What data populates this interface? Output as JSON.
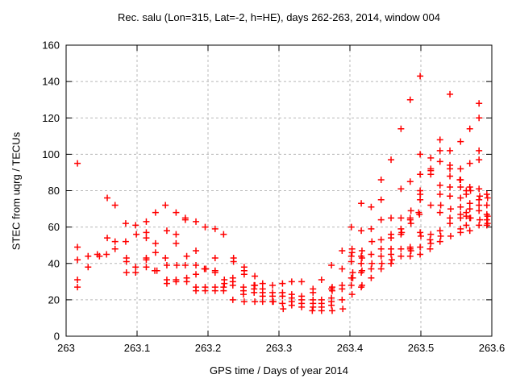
{
  "chart_data": {
    "type": "scatter",
    "title": "Rec. salu (Lon=315, Lat=-2, h=HE), days 262-263, 2014, window 004",
    "xlabel": "GPS time / Days of year 2014",
    "ylabel": "STEC from uqrg / TECUs",
    "xlim": [
      263,
      263.6
    ],
    "ylim": [
      0,
      160
    ],
    "xticks": [
      263,
      263.1,
      263.2,
      263.3,
      263.4,
      263.5,
      263.6
    ],
    "xtick_labels": [
      "263",
      "263.1",
      "263.2",
      "263.3",
      "263.4",
      "263.5",
      "263.6"
    ],
    "yticks": [
      0,
      20,
      40,
      60,
      80,
      100,
      120,
      140,
      160
    ],
    "ytick_labels": [
      "0",
      "20",
      "40",
      "60",
      "80",
      "100",
      "120",
      "140",
      "160"
    ],
    "grid": true,
    "grid_style": "dashed",
    "grid_color": "#b8b8b8",
    "axis_color": "#000000",
    "legend": "none",
    "marker": {
      "shape": "plus",
      "color": "#ff0000",
      "size": 8,
      "stroke_width": 1.5
    },
    "series": [
      {
        "name": "STEC",
        "points": [
          [
            263.016,
            95
          ],
          [
            263.016,
            49
          ],
          [
            263.016,
            42
          ],
          [
            263.016,
            31
          ],
          [
            263.016,
            27
          ],
          [
            263.031,
            44
          ],
          [
            263.031,
            38
          ],
          [
            263.044,
            45
          ],
          [
            263.047,
            44
          ],
          [
            263.058,
            76
          ],
          [
            263.058,
            54
          ],
          [
            263.057,
            45
          ],
          [
            263.069,
            72
          ],
          [
            263.069,
            52
          ],
          [
            263.069,
            48
          ],
          [
            263.084,
            62
          ],
          [
            263.084,
            52
          ],
          [
            263.085,
            43
          ],
          [
            263.085,
            41
          ],
          [
            263.085,
            35
          ],
          [
            263.098,
            61
          ],
          [
            263.099,
            56
          ],
          [
            263.098,
            38
          ],
          [
            263.098,
            35
          ],
          [
            263.113,
            63
          ],
          [
            263.113,
            57
          ],
          [
            263.113,
            54
          ],
          [
            263.113,
            43
          ],
          [
            263.113,
            42
          ],
          [
            263.113,
            38
          ],
          [
            263.126,
            68
          ],
          [
            263.126,
            51
          ],
          [
            263.126,
            46
          ],
          [
            263.125,
            36
          ],
          [
            263.128,
            36
          ],
          [
            263.14,
            72
          ],
          [
            263.142,
            58
          ],
          [
            263.14,
            43
          ],
          [
            263.142,
            39
          ],
          [
            263.142,
            31
          ],
          [
            263.142,
            29
          ],
          [
            263.155,
            68
          ],
          [
            263.155,
            56
          ],
          [
            263.155,
            51
          ],
          [
            263.156,
            39
          ],
          [
            263.155,
            31
          ],
          [
            263.155,
            30
          ],
          [
            263.168,
            65
          ],
          [
            263.168,
            64
          ],
          [
            263.17,
            44
          ],
          [
            263.168,
            39
          ],
          [
            263.17,
            32
          ],
          [
            263.17,
            30
          ],
          [
            263.183,
            63
          ],
          [
            263.183,
            47
          ],
          [
            263.183,
            39
          ],
          [
            263.183,
            34
          ],
          [
            263.183,
            27
          ],
          [
            263.183,
            25
          ],
          [
            263.196,
            60
          ],
          [
            263.197,
            37
          ],
          [
            263.195,
            37
          ],
          [
            263.196,
            27
          ],
          [
            263.196,
            25
          ],
          [
            263.21,
            59
          ],
          [
            263.21,
            43
          ],
          [
            263.21,
            36
          ],
          [
            263.21,
            35
          ],
          [
            263.21,
            27
          ],
          [
            263.21,
            25
          ],
          [
            263.222,
            56
          ],
          [
            263.223,
            31
          ],
          [
            263.223,
            29
          ],
          [
            263.222,
            27
          ],
          [
            263.222,
            25
          ],
          [
            263.236,
            43
          ],
          [
            263.236,
            41
          ],
          [
            263.235,
            32
          ],
          [
            263.235,
            30
          ],
          [
            263.235,
            28
          ],
          [
            263.235,
            20
          ],
          [
            263.251,
            38
          ],
          [
            263.251,
            36
          ],
          [
            263.251,
            34
          ],
          [
            263.25,
            27
          ],
          [
            263.25,
            25
          ],
          [
            263.25,
            23
          ],
          [
            263.251,
            19
          ],
          [
            263.266,
            33
          ],
          [
            263.265,
            28
          ],
          [
            263.266,
            28
          ],
          [
            263.265,
            26
          ],
          [
            263.265,
            24
          ],
          [
            263.266,
            19
          ],
          [
            263.277,
            29
          ],
          [
            263.277,
            26
          ],
          [
            263.277,
            24
          ],
          [
            263.277,
            22
          ],
          [
            263.277,
            19
          ],
          [
            263.291,
            28
          ],
          [
            263.291,
            24
          ],
          [
            263.291,
            22
          ],
          [
            263.291,
            19
          ],
          [
            263.292,
            19
          ],
          [
            263.305,
            29
          ],
          [
            263.305,
            24
          ],
          [
            263.305,
            22
          ],
          [
            263.305,
            18
          ],
          [
            263.306,
            15
          ],
          [
            263.318,
            30
          ],
          [
            263.318,
            23
          ],
          [
            263.318,
            21
          ],
          [
            263.318,
            19
          ],
          [
            263.318,
            17
          ],
          [
            263.332,
            30
          ],
          [
            263.332,
            22
          ],
          [
            263.332,
            20
          ],
          [
            263.332,
            18
          ],
          [
            263.332,
            16
          ],
          [
            263.348,
            26
          ],
          [
            263.348,
            24
          ],
          [
            263.348,
            20
          ],
          [
            263.348,
            18
          ],
          [
            263.348,
            16
          ],
          [
            263.347,
            14
          ],
          [
            263.36,
            31
          ],
          [
            263.36,
            20
          ],
          [
            263.36,
            18
          ],
          [
            263.36,
            16
          ],
          [
            263.36,
            14
          ],
          [
            263.374,
            39
          ],
          [
            263.375,
            27
          ],
          [
            263.374,
            26
          ],
          [
            263.375,
            25
          ],
          [
            263.374,
            21
          ],
          [
            263.374,
            19
          ],
          [
            263.374,
            17
          ],
          [
            263.375,
            14
          ],
          [
            263.389,
            47
          ],
          [
            263.389,
            37
          ],
          [
            263.389,
            28
          ],
          [
            263.389,
            26
          ],
          [
            263.389,
            20
          ],
          [
            263.39,
            15
          ],
          [
            263.402,
            60
          ],
          [
            263.403,
            48
          ],
          [
            263.403,
            46
          ],
          [
            263.402,
            44
          ],
          [
            263.402,
            41
          ],
          [
            263.404,
            35
          ],
          [
            263.402,
            32
          ],
          [
            263.404,
            32
          ],
          [
            263.402,
            28
          ],
          [
            263.403,
            23
          ],
          [
            263.416,
            73
          ],
          [
            263.416,
            58
          ],
          [
            263.417,
            47
          ],
          [
            263.416,
            44
          ],
          [
            263.417,
            43
          ],
          [
            263.416,
            40
          ],
          [
            263.417,
            36
          ],
          [
            263.416,
            35
          ],
          [
            263.417,
            28
          ],
          [
            263.416,
            27
          ],
          [
            263.43,
            71
          ],
          [
            263.43,
            59
          ],
          [
            263.431,
            52
          ],
          [
            263.43,
            45
          ],
          [
            263.431,
            40
          ],
          [
            263.43,
            37
          ],
          [
            263.43,
            32
          ],
          [
            263.444,
            86
          ],
          [
            263.444,
            75
          ],
          [
            263.444,
            64
          ],
          [
            263.444,
            53
          ],
          [
            263.444,
            48
          ],
          [
            263.444,
            44
          ],
          [
            263.445,
            40
          ],
          [
            263.444,
            37
          ],
          [
            263.458,
            97
          ],
          [
            263.458,
            65
          ],
          [
            263.458,
            56
          ],
          [
            263.458,
            54
          ],
          [
            263.458,
            48
          ],
          [
            263.458,
            45
          ],
          [
            263.459,
            42
          ],
          [
            263.458,
            40
          ],
          [
            263.472,
            114
          ],
          [
            263.472,
            81
          ],
          [
            263.472,
            65
          ],
          [
            263.472,
            59
          ],
          [
            263.473,
            57
          ],
          [
            263.472,
            56
          ],
          [
            263.472,
            48
          ],
          [
            263.472,
            44
          ],
          [
            263.485,
            130
          ],
          [
            263.485,
            85
          ],
          [
            263.486,
            69
          ],
          [
            263.485,
            65
          ],
          [
            263.485,
            64
          ],
          [
            263.486,
            62
          ],
          [
            263.485,
            49
          ],
          [
            263.485,
            48
          ],
          [
            263.486,
            47
          ],
          [
            263.485,
            44
          ],
          [
            263.499,
            143
          ],
          [
            263.499,
            100
          ],
          [
            263.499,
            89
          ],
          [
            263.499,
            80
          ],
          [
            263.499,
            78
          ],
          [
            263.499,
            75
          ],
          [
            263.497,
            68
          ],
          [
            263.498,
            67
          ],
          [
            263.499,
            57
          ],
          [
            263.5,
            55
          ],
          [
            263.499,
            49
          ],
          [
            263.499,
            45
          ],
          [
            263.514,
            98
          ],
          [
            263.514,
            92
          ],
          [
            263.514,
            91
          ],
          [
            263.514,
            89
          ],
          [
            263.514,
            72
          ],
          [
            263.514,
            56
          ],
          [
            263.513,
            53
          ],
          [
            263.514,
            51
          ],
          [
            263.513,
            48
          ],
          [
            263.527,
            108
          ],
          [
            263.527,
            102
          ],
          [
            263.527,
            96
          ],
          [
            263.527,
            83
          ],
          [
            263.527,
            78
          ],
          [
            263.528,
            72
          ],
          [
            263.527,
            68
          ],
          [
            263.527,
            58
          ],
          [
            263.528,
            55
          ],
          [
            263.527,
            52
          ],
          [
            263.541,
            133
          ],
          [
            263.541,
            102
          ],
          [
            263.541,
            94
          ],
          [
            263.541,
            92
          ],
          [
            263.541,
            88
          ],
          [
            263.541,
            82
          ],
          [
            263.541,
            77
          ],
          [
            263.542,
            70
          ],
          [
            263.541,
            65
          ],
          [
            263.541,
            62
          ],
          [
            263.542,
            55
          ],
          [
            263.556,
            107
          ],
          [
            263.556,
            92
          ],
          [
            263.556,
            86
          ],
          [
            263.555,
            86
          ],
          [
            263.556,
            82
          ],
          [
            263.556,
            76
          ],
          [
            263.556,
            71
          ],
          [
            263.556,
            67
          ],
          [
            263.556,
            65
          ],
          [
            263.556,
            59
          ],
          [
            263.556,
            57
          ],
          [
            263.564,
            80
          ],
          [
            263.564,
            78
          ],
          [
            263.564,
            68
          ],
          [
            263.564,
            66
          ],
          [
            263.564,
            61
          ],
          [
            263.569,
            114
          ],
          [
            263.569,
            95
          ],
          [
            263.569,
            82
          ],
          [
            263.57,
            80
          ],
          [
            263.569,
            73
          ],
          [
            263.569,
            70
          ],
          [
            263.57,
            65
          ],
          [
            263.569,
            65
          ],
          [
            263.569,
            58
          ],
          [
            263.582,
            128
          ],
          [
            263.582,
            120
          ],
          [
            263.582,
            102
          ],
          [
            263.582,
            97
          ],
          [
            263.582,
            81
          ],
          [
            263.583,
            77
          ],
          [
            263.582,
            75
          ],
          [
            263.582,
            72
          ],
          [
            263.582,
            69
          ],
          [
            263.583,
            64
          ],
          [
            263.582,
            61
          ],
          [
            263.593,
            78
          ],
          [
            263.594,
            76
          ],
          [
            263.593,
            72
          ],
          [
            263.593,
            67
          ],
          [
            263.594,
            66
          ],
          [
            263.593,
            64
          ],
          [
            263.594,
            62
          ],
          [
            263.593,
            61
          ]
        ]
      }
    ]
  }
}
